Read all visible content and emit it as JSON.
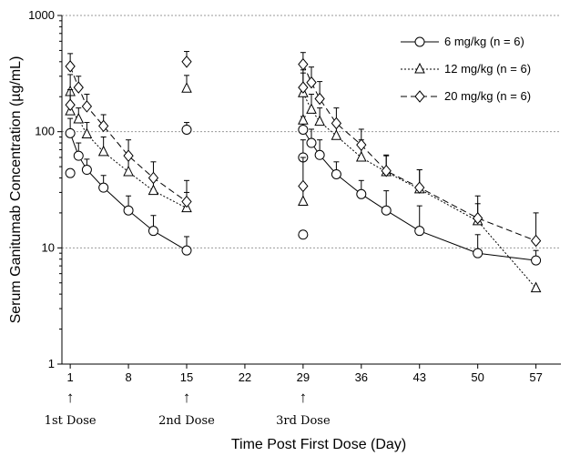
{
  "chart_data": {
    "type": "line",
    "xlabel": "Time Post First Dose (Day)",
    "ylabel": "Serum Ganitumab Concentration (µg/mL)",
    "yscale": "log",
    "ylim": [
      1,
      1000
    ],
    "xlim": [
      0,
      60
    ],
    "xticks": [
      1,
      8,
      15,
      22,
      29,
      36,
      43,
      50,
      57
    ],
    "yticks": [
      1,
      10,
      100,
      1000
    ],
    "grid": "horizontal dotted at 10, 100, 1000",
    "legend_position": "top-right",
    "annotations": [
      {
        "label": "1st Dose",
        "x": 1,
        "symbol": "↑"
      },
      {
        "label": "2nd Dose",
        "x": 15,
        "symbol": "↑"
      },
      {
        "label": "3rd Dose",
        "x": 29,
        "symbol": "↑"
      }
    ],
    "series": [
      {
        "name": "6 mg/kg (n = 6)",
        "marker": "circle",
        "line": "solid",
        "color": "#000000",
        "segments": [
          [
            [
              1,
              97
            ],
            [
              2,
              62
            ],
            [
              3,
              47
            ],
            [
              5,
              33
            ],
            [
              8,
              21
            ],
            [
              11,
              14
            ],
            [
              15,
              9.5
            ]
          ],
          [
            [
              29,
              104
            ],
            [
              30,
              80
            ],
            [
              31,
              63
            ],
            [
              33,
              43
            ],
            [
              36,
              29
            ],
            [
              39,
              21
            ],
            [
              43,
              14
            ],
            [
              50,
              9
            ],
            [
              57,
              7.8
            ]
          ]
        ],
        "points": [
          {
            "x": 1,
            "y": 44,
            "err": null
          },
          {
            "x": 1,
            "y": 97,
            "err": 130
          },
          {
            "x": 2,
            "y": 62,
            "err": 80
          },
          {
            "x": 3,
            "y": 47,
            "err": 58
          },
          {
            "x": 5,
            "y": 33,
            "err": 42
          },
          {
            "x": 8,
            "y": 21,
            "err": 28
          },
          {
            "x": 11,
            "y": 14,
            "err": 19
          },
          {
            "x": 15,
            "y": 9.5,
            "err": 12.5
          },
          {
            "x": 15,
            "y": 104,
            "err": 120
          },
          {
            "x": 29,
            "y": 13,
            "err": null
          },
          {
            "x": 29,
            "y": 60,
            "err": 85
          },
          {
            "x": 29,
            "y": 104,
            "err": 135
          },
          {
            "x": 30,
            "y": 80,
            "err": 105
          },
          {
            "x": 31,
            "y": 63,
            "err": 85
          },
          {
            "x": 33,
            "y": 43,
            "err": 55
          },
          {
            "x": 36,
            "y": 29,
            "err": 38
          },
          {
            "x": 39,
            "y": 21,
            "err": 31
          },
          {
            "x": 43,
            "y": 14,
            "err": 23
          },
          {
            "x": 50,
            "y": 9,
            "err": 13
          },
          {
            "x": 57,
            "y": 7.8,
            "err": 9.5
          }
        ]
      },
      {
        "name": "12 mg/kg (n = 6)",
        "marker": "triangle",
        "line": "dotted",
        "color": "#000000",
        "segments": [
          [
            [
              1,
              150
            ],
            [
              2,
              128
            ],
            [
              3,
              95
            ],
            [
              5,
              67
            ],
            [
              8,
              45
            ],
            [
              11,
              31
            ],
            [
              15,
              22
            ]
          ],
          [
            [
              29,
              215
            ],
            [
              30,
              155
            ],
            [
              31,
              122
            ],
            [
              33,
              92
            ],
            [
              36,
              60
            ],
            [
              39,
              45
            ],
            [
              43,
              32
            ],
            [
              50,
              17
            ],
            [
              57,
              4.5
            ]
          ]
        ],
        "points": [
          {
            "x": 1,
            "y": 150,
            "err": 230
          },
          {
            "x": 1,
            "y": 220,
            "err": 310
          },
          {
            "x": 2,
            "y": 128,
            "err": 160
          },
          {
            "x": 3,
            "y": 95,
            "err": 120
          },
          {
            "x": 5,
            "y": 67,
            "err": 90
          },
          {
            "x": 8,
            "y": 45,
            "err": 62
          },
          {
            "x": 11,
            "y": 31,
            "err": 42
          },
          {
            "x": 15,
            "y": 22,
            "err": 30
          },
          {
            "x": 15,
            "y": 235,
            "err": 305
          },
          {
            "x": 29,
            "y": 25,
            "err": 36
          },
          {
            "x": 29,
            "y": 125,
            "err": 210
          },
          {
            "x": 29,
            "y": 215,
            "err": 320
          },
          {
            "x": 30,
            "y": 155,
            "err": 210
          },
          {
            "x": 31,
            "y": 122,
            "err": 160
          },
          {
            "x": 33,
            "y": 92,
            "err": 120
          },
          {
            "x": 36,
            "y": 60,
            "err": 85
          },
          {
            "x": 39,
            "y": 45,
            "err": 62
          },
          {
            "x": 43,
            "y": 32,
            "err": 47
          },
          {
            "x": 50,
            "y": 17,
            "err": 24
          },
          {
            "x": 57,
            "y": 4.5,
            "err": null
          }
        ]
      },
      {
        "name": "20 mg/kg (n = 6)",
        "marker": "diamond",
        "line": "dashed",
        "color": "#000000",
        "segments": [
          [
            [
              1,
              365
            ],
            [
              2,
              240
            ],
            [
              3,
              165
            ],
            [
              5,
              112
            ],
            [
              8,
              62
            ],
            [
              11,
              40
            ],
            [
              15,
              25
            ]
          ],
          [
            [
              29,
              380
            ],
            [
              30,
              265
            ],
            [
              31,
              192
            ],
            [
              33,
              118
            ],
            [
              36,
              77
            ],
            [
              39,
              46
            ],
            [
              43,
              33
            ],
            [
              50,
              18
            ],
            [
              57,
              11.5
            ]
          ]
        ],
        "points": [
          {
            "x": 1,
            "y": 170,
            "err": 230
          },
          {
            "x": 1,
            "y": 365,
            "err": 470
          },
          {
            "x": 2,
            "y": 240,
            "err": 300
          },
          {
            "x": 3,
            "y": 165,
            "err": 210
          },
          {
            "x": 5,
            "y": 112,
            "err": 140
          },
          {
            "x": 8,
            "y": 62,
            "err": 85
          },
          {
            "x": 11,
            "y": 40,
            "err": 55
          },
          {
            "x": 15,
            "y": 25,
            "err": 38
          },
          {
            "x": 15,
            "y": 400,
            "err": 490
          },
          {
            "x": 29,
            "y": 34,
            "err": 60
          },
          {
            "x": 29,
            "y": 240,
            "err": 340
          },
          {
            "x": 29,
            "y": 380,
            "err": 480
          },
          {
            "x": 30,
            "y": 265,
            "err": 360
          },
          {
            "x": 31,
            "y": 192,
            "err": 270
          },
          {
            "x": 33,
            "y": 118,
            "err": 160
          },
          {
            "x": 36,
            "y": 77,
            "err": 105
          },
          {
            "x": 39,
            "y": 46,
            "err": 63
          },
          {
            "x": 43,
            "y": 33,
            "err": 47
          },
          {
            "x": 50,
            "y": 18,
            "err": 28
          },
          {
            "x": 57,
            "y": 11.5,
            "err": 20
          }
        ]
      }
    ]
  }
}
